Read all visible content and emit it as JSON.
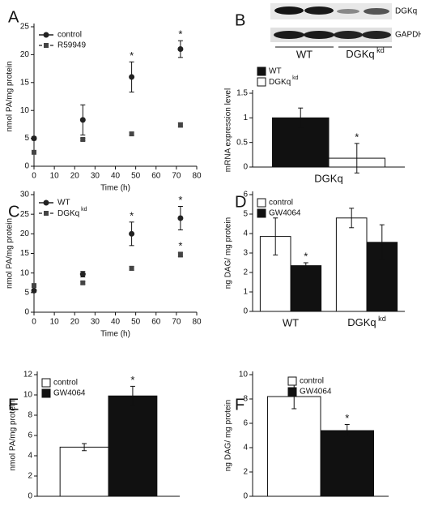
{
  "chart_data": [
    {
      "panel": "A",
      "type": "line",
      "x": [
        0,
        24,
        48,
        72
      ],
      "xlim": [
        0,
        80
      ],
      "xticks": [
        0,
        10,
        20,
        30,
        40,
        50,
        60,
        70,
        80
      ],
      "ylim": [
        0,
        25
      ],
      "yticks": [
        0,
        5,
        10,
        15,
        20,
        25
      ],
      "xlabel": "Time (h)",
      "ylabel": "nmol PA/mg protein",
      "legend": "upper left",
      "series": [
        {
          "name": "control",
          "color": "#222222",
          "linestyle": "solid",
          "marker": "circle",
          "values": [
            5,
            8.3,
            16,
            21
          ],
          "errors": [
            0.3,
            2.7,
            2.7,
            1.5
          ]
        },
        {
          "name": "R59949",
          "color": "#444444",
          "linestyle": "dashed",
          "marker": "square",
          "values": [
            2.5,
            4.8,
            5.8,
            7.4
          ],
          "errors": [
            0.2,
            0.2,
            0.3,
            0.4
          ]
        }
      ],
      "annotations": [
        {
          "text": "*",
          "series": "control",
          "x": 48
        },
        {
          "text": "*",
          "series": "control",
          "x": 72
        }
      ]
    },
    {
      "panel": "B",
      "type": "bar",
      "categories": [
        "DGKq"
      ],
      "ylim": [
        0,
        1.5
      ],
      "yticks": [
        0,
        0.5,
        1,
        1.5
      ],
      "ylabel": "mRNA expression level",
      "legend": "above left",
      "series": [
        {
          "name": "WT",
          "color": "#111111",
          "values": [
            1.0
          ],
          "errors": [
            0.2
          ]
        },
        {
          "name": "DGKq kd",
          "color": "#ffffff",
          "values": [
            0.18
          ],
          "errors": [
            0.3
          ]
        }
      ],
      "annotations": [
        {
          "text": "*",
          "series": "DGKq kd"
        }
      ],
      "blot": {
        "bands": [
          "DGKq",
          "GAPDH"
        ],
        "lanes": [
          "WT",
          "DGKq kd"
        ]
      }
    },
    {
      "panel": "C",
      "type": "line",
      "x": [
        0,
        24,
        48,
        72
      ],
      "xlim": [
        0,
        80
      ],
      "xticks": [
        0,
        10,
        20,
        30,
        40,
        50,
        60,
        70,
        80
      ],
      "ylim": [
        0,
        30
      ],
      "yticks": [
        0,
        5,
        10,
        15,
        20,
        25,
        30
      ],
      "xlabel": "Time (h)",
      "ylabel": "nmol PA/mg protein",
      "legend": "upper left",
      "series": [
        {
          "name": "WT",
          "color": "#222222",
          "linestyle": "solid",
          "marker": "circle",
          "values": [
            5.5,
            9.7,
            20,
            24
          ],
          "errors": [
            0.4,
            0.7,
            3,
            3
          ]
        },
        {
          "name": "DGKq kd",
          "color": "#444444",
          "linestyle": "dashed",
          "marker": "square",
          "values": [
            6.8,
            7.5,
            11.2,
            14.7
          ],
          "errors": [
            0.2,
            0.3,
            0.5,
            0.6
          ]
        }
      ],
      "annotations": [
        {
          "text": "*",
          "series": "WT",
          "x": 48
        },
        {
          "text": "*",
          "series": "WT",
          "x": 72
        },
        {
          "text": "*",
          "series": "DGKq kd",
          "x": 72
        }
      ]
    },
    {
      "panel": "D",
      "type": "bar",
      "categories": [
        "WT",
        "DGKq kd"
      ],
      "ylim": [
        0,
        6
      ],
      "yticks": [
        0,
        1,
        2,
        3,
        4,
        5,
        6
      ],
      "ylabel": "ng DAG/ mg protein",
      "legend": "upper left",
      "series": [
        {
          "name": "control",
          "color": "#ffffff",
          "values": [
            3.85,
            4.8
          ],
          "errors": [
            0.95,
            0.5
          ]
        },
        {
          "name": "GW4064",
          "color": "#111111",
          "values": [
            2.35,
            3.55
          ],
          "errors": [
            0.15,
            0.9
          ]
        }
      ],
      "annotations": [
        {
          "text": "*",
          "series": "GW4064",
          "category": "WT"
        }
      ]
    },
    {
      "panel": "E",
      "type": "bar",
      "categories": [
        null
      ],
      "ylim": [
        0,
        12
      ],
      "yticks": [
        0,
        2,
        4,
        6,
        8,
        10,
        12
      ],
      "ylabel": "nmol PA/mg protein",
      "legend": "upper left",
      "series": [
        {
          "name": "control",
          "color": "#ffffff",
          "values": [
            4.85
          ],
          "errors": [
            0.35
          ]
        },
        {
          "name": "GW4064",
          "color": "#111111",
          "values": [
            9.9
          ],
          "errors": [
            0.95
          ]
        }
      ],
      "annotations": [
        {
          "text": "*",
          "series": "GW4064"
        }
      ]
    },
    {
      "panel": "F",
      "type": "bar",
      "categories": [
        null
      ],
      "ylim": [
        0,
        10
      ],
      "yticks": [
        0,
        2,
        4,
        6,
        8,
        10
      ],
      "ylabel": "ng DAG/ mg protein",
      "legend": "upper center",
      "series": [
        {
          "name": "control",
          "color": "#ffffff",
          "values": [
            8.2
          ],
          "errors": [
            1.0
          ]
        },
        {
          "name": "GW4064",
          "color": "#111111",
          "values": [
            5.4
          ],
          "errors": [
            0.5
          ]
        }
      ],
      "annotations": [
        {
          "text": "*",
          "series": "GW4064"
        }
      ]
    }
  ]
}
